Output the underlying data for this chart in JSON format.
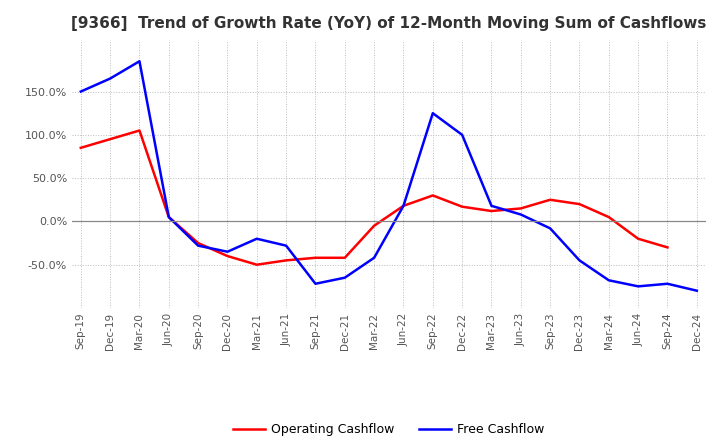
{
  "title": "[9366]  Trend of Growth Rate (YoY) of 12-Month Moving Sum of Cashflows",
  "x_labels": [
    "Sep-19",
    "Dec-19",
    "Mar-20",
    "Jun-20",
    "Sep-20",
    "Dec-20",
    "Mar-21",
    "Jun-21",
    "Sep-21",
    "Dec-21",
    "Mar-22",
    "Jun-22",
    "Sep-22",
    "Dec-22",
    "Mar-23",
    "Jun-23",
    "Sep-23",
    "Dec-23",
    "Mar-24",
    "Jun-24",
    "Sep-24",
    "Dec-24"
  ],
  "operating_cashflow": [
    85,
    95,
    105,
    5,
    -25,
    -40,
    -50,
    -45,
    -42,
    -42,
    -5,
    18,
    30,
    17,
    12,
    15,
    25,
    20,
    5,
    -20,
    -30,
    null
  ],
  "free_cashflow": [
    150,
    165,
    185,
    5,
    -28,
    -35,
    -20,
    -28,
    -72,
    -65,
    -42,
    18,
    125,
    100,
    18,
    8,
    -8,
    -45,
    -68,
    -75,
    -72,
    -80
  ],
  "ylim": [
    -100,
    210
  ],
  "yticks": [
    -50,
    0,
    50,
    100,
    150
  ],
  "operating_color": "#ff0000",
  "free_color": "#0000ff",
  "grid_color": "#bbbbbb",
  "background_color": "#ffffff",
  "title_fontsize": 11,
  "legend_labels": [
    "Operating Cashflow",
    "Free Cashflow"
  ]
}
